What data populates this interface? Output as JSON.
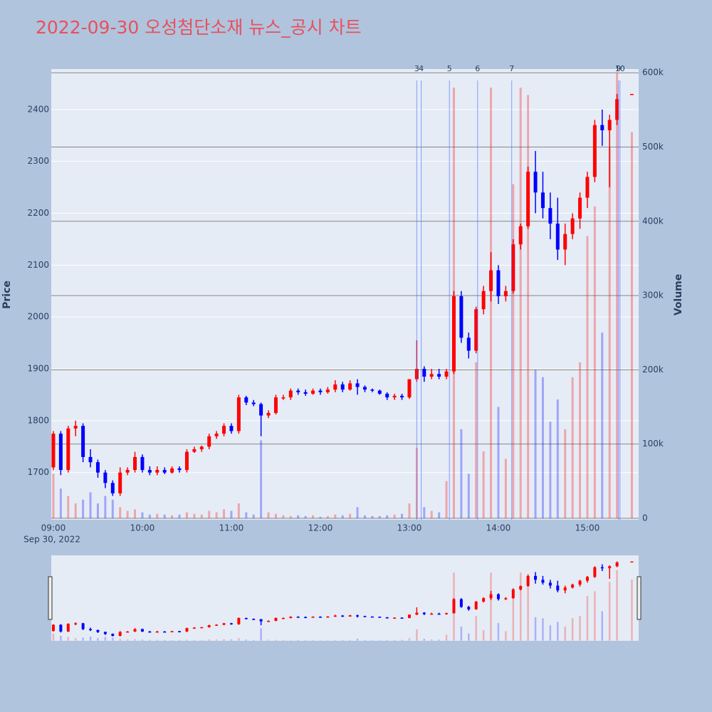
{
  "chart_data": {
    "type": "candlestick",
    "title": "2022-09-30 오성첨단소재 뉴스_공시 차트",
    "y_label": "Price",
    "y2_label": "Volume",
    "x_date_label": "Sep 30, 2022",
    "increasing_color": "#ff0000",
    "decreasing_color": "#0000ff",
    "x": [
      "2022-09-30 09:00",
      "2022-09-30 09:05",
      "2022-09-30 09:10",
      "2022-09-30 09:15",
      "2022-09-30 09:20",
      "2022-09-30 09:25",
      "2022-09-30 09:30",
      "2022-09-30 09:35",
      "2022-09-30 09:40",
      "2022-09-30 09:45",
      "2022-09-30 09:50",
      "2022-09-30 09:55",
      "2022-09-30 10:00",
      "2022-09-30 10:05",
      "2022-09-30 10:10",
      "2022-09-30 10:15",
      "2022-09-30 10:20",
      "2022-09-30 10:25",
      "2022-09-30 10:30",
      "2022-09-30 10:35",
      "2022-09-30 10:40",
      "2022-09-30 10:45",
      "2022-09-30 10:50",
      "2022-09-30 10:55",
      "2022-09-30 11:00",
      "2022-09-30 11:05",
      "2022-09-30 11:10",
      "2022-09-30 11:15",
      "2022-09-30 11:20",
      "2022-09-30 11:25",
      "2022-09-30 11:30",
      "2022-09-30 11:35",
      "2022-09-30 11:40",
      "2022-09-30 11:45",
      "2022-09-30 11:50",
      "2022-09-30 11:55",
      "2022-09-30 12:00",
      "2022-09-30 12:05",
      "2022-09-30 12:10",
      "2022-09-30 12:15",
      "2022-09-30 12:20",
      "2022-09-30 12:25",
      "2022-09-30 12:30",
      "2022-09-30 12:35",
      "2022-09-30 12:40",
      "2022-09-30 12:45",
      "2022-09-30 12:50",
      "2022-09-30 12:55",
      "2022-09-30 13:00",
      "2022-09-30 13:05",
      "2022-09-30 13:10",
      "2022-09-30 13:15",
      "2022-09-30 13:20",
      "2022-09-30 13:25",
      "2022-09-30 13:30",
      "2022-09-30 13:35",
      "2022-09-30 13:40",
      "2022-09-30 13:45",
      "2022-09-30 13:50",
      "2022-09-30 13:55",
      "2022-09-30 14:00",
      "2022-09-30 14:05",
      "2022-09-30 14:10",
      "2022-09-30 14:15",
      "2022-09-30 14:20",
      "2022-09-30 14:25",
      "2022-09-30 14:30",
      "2022-09-30 14:35",
      "2022-09-30 14:40",
      "2022-09-30 14:45",
      "2022-09-30 14:50",
      "2022-09-30 14:55",
      "2022-09-30 15:00",
      "2022-09-30 15:05",
      "2022-09-30 15:10",
      "2022-09-30 15:15",
      "2022-09-30 15:20",
      "2022-09-30 15:30"
    ],
    "open": [
      1710,
      1775,
      1705,
      1785,
      1790,
      1730,
      1720,
      1700,
      1680,
      1660,
      1700,
      1705,
      1730,
      1705,
      1700,
      1705,
      1700,
      1708,
      1705,
      1740,
      1745,
      1750,
      1770,
      1775,
      1790,
      1780,
      1845,
      1835,
      1832,
      1810,
      1815,
      1845,
      1845,
      1858,
      1855,
      1852,
      1858,
      1855,
      1860,
      1870,
      1860,
      1872,
      1865,
      1860,
      1858,
      1852,
      1845,
      1848,
      1845,
      1880,
      1900,
      1885,
      1890,
      1885,
      1895,
      2040,
      1960,
      1935,
      2015,
      2050,
      2090,
      2040,
      2050,
      2140,
      2175,
      2280,
      2240,
      2210,
      2180,
      2130,
      2160,
      2190,
      2230,
      2270,
      2370,
      2360,
      2380,
      2430
    ],
    "high": [
      1780,
      1780,
      1790,
      1800,
      1795,
      1745,
      1725,
      1705,
      1685,
      1710,
      1710,
      1740,
      1735,
      1712,
      1712,
      1710,
      1712,
      1712,
      1745,
      1750,
      1752,
      1775,
      1780,
      1795,
      1795,
      1850,
      1848,
      1840,
      1835,
      1820,
      1850,
      1850,
      1862,
      1862,
      1860,
      1862,
      1862,
      1865,
      1878,
      1875,
      1878,
      1880,
      1868,
      1862,
      1860,
      1855,
      1852,
      1852,
      1880,
      1955,
      1905,
      1900,
      1900,
      1900,
      2050,
      2050,
      1970,
      2020,
      2060,
      2125,
      2100,
      2060,
      2150,
      2180,
      2290,
      2320,
      2280,
      2240,
      2230,
      2180,
      2200,
      2240,
      2280,
      2380,
      2400,
      2390,
      2430,
      2430
    ],
    "low": [
      1705,
      1695,
      1700,
      1770,
      1720,
      1710,
      1690,
      1670,
      1655,
      1655,
      1695,
      1700,
      1700,
      1695,
      1695,
      1697,
      1698,
      1700,
      1700,
      1738,
      1740,
      1745,
      1765,
      1770,
      1775,
      1775,
      1830,
      1828,
      1770,
      1805,
      1812,
      1840,
      1840,
      1850,
      1848,
      1850,
      1850,
      1852,
      1855,
      1855,
      1858,
      1850,
      1855,
      1855,
      1850,
      1840,
      1840,
      1840,
      1842,
      1875,
      1875,
      1880,
      1880,
      1880,
      1890,
      1950,
      1920,
      1930,
      2005,
      2030,
      2025,
      2030,
      2045,
      2130,
      2170,
      2200,
      2190,
      2150,
      2110,
      2100,
      2150,
      2170,
      2210,
      2260,
      2330,
      2250,
      2370,
      2430
    ],
    "close": [
      1775,
      1705,
      1785,
      1790,
      1730,
      1720,
      1700,
      1680,
      1660,
      1700,
      1705,
      1730,
      1705,
      1700,
      1705,
      1700,
      1708,
      1705,
      1740,
      1745,
      1750,
      1770,
      1775,
      1790,
      1780,
      1845,
      1835,
      1832,
      1810,
      1815,
      1845,
      1845,
      1858,
      1855,
      1852,
      1858,
      1855,
      1860,
      1870,
      1860,
      1872,
      1865,
      1860,
      1858,
      1852,
      1845,
      1848,
      1845,
      1880,
      1900,
      1885,
      1890,
      1885,
      1895,
      2040,
      1960,
      1935,
      2015,
      2050,
      2090,
      2040,
      2050,
      2140,
      2175,
      2280,
      2240,
      2210,
      2180,
      2130,
      2160,
      2190,
      2230,
      2270,
      2370,
      2360,
      2380,
      2420,
      2430
    ],
    "volume": [
      60000,
      40000,
      30000,
      20000,
      25000,
      35000,
      20000,
      30000,
      25000,
      15000,
      10000,
      12000,
      8000,
      5000,
      6000,
      5000,
      4000,
      5000,
      8000,
      6000,
      5000,
      10000,
      8000,
      12000,
      10000,
      20000,
      8000,
      5000,
      105000,
      8000,
      6000,
      4000,
      3000,
      4000,
      3000,
      4000,
      2000,
      3000,
      5000,
      4000,
      6000,
      15000,
      4000,
      3000,
      3000,
      4000,
      5000,
      6000,
      20000,
      95000,
      15000,
      10000,
      8000,
      50000,
      580000,
      120000,
      60000,
      210000,
      90000,
      580000,
      150000,
      80000,
      450000,
      580000,
      570000,
      200000,
      190000,
      130000,
      160000,
      120000,
      190000,
      210000,
      380000,
      420000,
      250000,
      500000,
      600000,
      520000
    ],
    "news": [
      {
        "x": "2022-09-30 13:05",
        "label": "3"
      },
      {
        "x": "2022-09-30 13:08",
        "label": "4"
      },
      {
        "x": "2022-09-30 13:27",
        "label": "5"
      },
      {
        "x": "2022-09-30 13:46",
        "label": "6"
      },
      {
        "x": "2022-09-30 14:09",
        "label": "7"
      },
      {
        "x": "2022-09-30 15:21",
        "label": "9"
      },
      {
        "x": "2022-09-30 15:22",
        "label": "10"
      }
    ],
    "xlim": [
      "2022-09-30 08:58:35",
      "2022-09-30 15:34:35"
    ],
    "xticks": [
      {
        "value": "2022-09-30 09:00",
        "label": "09:00"
      },
      {
        "value": "2022-09-30 10:00",
        "label": "10:00"
      },
      {
        "value": "2022-09-30 11:00",
        "label": "11:00"
      },
      {
        "value": "2022-09-30 12:00",
        "label": "12:00"
      },
      {
        "value": "2022-09-30 13:00",
        "label": "13:00"
      },
      {
        "value": "2022-09-30 14:00",
        "label": "14:00"
      },
      {
        "value": "2022-09-30 15:00",
        "label": "15:00"
      }
    ],
    "ylim": [
      1609,
      2478
    ],
    "yticks": [
      1700,
      1800,
      1900,
      2000,
      2100,
      2200,
      2300,
      2400
    ],
    "y2lim": [
      -2000,
      605000
    ],
    "y2ticks": [
      0,
      {
        "value": 100000,
        "label": "100k"
      },
      {
        "value": 200000,
        "label": "200k"
      },
      {
        "value": 300000,
        "label": "300k"
      },
      {
        "value": 400000,
        "label": "400k"
      },
      {
        "value": 500000,
        "label": "500k"
      },
      {
        "value": 600000,
        "label": "600k"
      }
    ],
    "grid": true,
    "rangeslider": true
  }
}
